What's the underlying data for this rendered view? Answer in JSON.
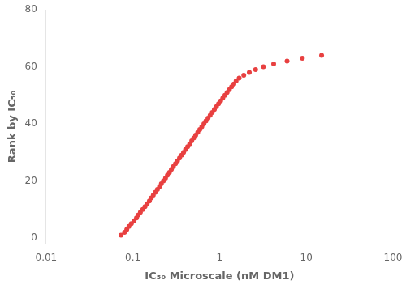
{
  "chart_data": {
    "type": "scatter",
    "xlabel": "IC₅₀ Microscale (nM DM1)",
    "ylabel": "Rank by IC₅₀",
    "log": "x",
    "grid": false,
    "color": "#E84040",
    "marker": "circle",
    "xlim": [
      0.01,
      100
    ],
    "xticks": [
      0.01,
      0.1,
      1,
      10,
      100
    ],
    "ylim": [
      -2,
      80
    ],
    "yticks": [
      0,
      20,
      40,
      60,
      80
    ],
    "x": [
      0.073,
      0.08,
      0.085,
      0.09,
      0.096,
      0.103,
      0.11,
      0.115,
      0.122,
      0.13,
      0.138,
      0.146,
      0.155,
      0.163,
      0.172,
      0.182,
      0.192,
      0.203,
      0.213,
      0.225,
      0.238,
      0.25,
      0.264,
      0.278,
      0.293,
      0.31,
      0.327,
      0.345,
      0.364,
      0.384,
      0.405,
      0.428,
      0.452,
      0.477,
      0.503,
      0.53,
      0.56,
      0.591,
      0.624,
      0.659,
      0.695,
      0.735,
      0.778,
      0.822,
      0.87,
      0.92,
      0.972,
      1.028,
      1.088,
      1.152,
      1.22,
      1.295,
      1.375,
      1.46,
      1.55,
      1.68,
      1.9,
      2.2,
      2.6,
      3.2,
      4.2,
      6.0,
      9.0,
      15.0
    ],
    "values": [
      1,
      2,
      3,
      4,
      5,
      6,
      7,
      8,
      9,
      10,
      11,
      12,
      13,
      14,
      15,
      16,
      17,
      18,
      19,
      20,
      21,
      22,
      23,
      24,
      25,
      26,
      27,
      28,
      29,
      30,
      31,
      32,
      33,
      34,
      35,
      36,
      37,
      38,
      39,
      40,
      41,
      42,
      43,
      44,
      45,
      46,
      47,
      48,
      49,
      50,
      51,
      52,
      53,
      54,
      55,
      56,
      57,
      58,
      59,
      60,
      61,
      62,
      63,
      64
    ]
  }
}
